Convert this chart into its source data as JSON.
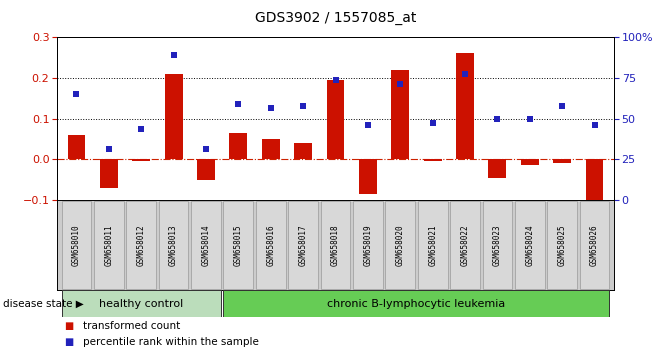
{
  "title": "GDS3902 / 1557085_at",
  "samples": [
    "GSM658010",
    "GSM658011",
    "GSM658012",
    "GSM658013",
    "GSM658014",
    "GSM658015",
    "GSM658016",
    "GSM658017",
    "GSM658018",
    "GSM658019",
    "GSM658020",
    "GSM658021",
    "GSM658022",
    "GSM658023",
    "GSM658024",
    "GSM658025",
    "GSM658026"
  ],
  "bar_values": [
    0.06,
    -0.07,
    -0.003,
    0.21,
    -0.05,
    0.065,
    0.05,
    0.04,
    0.195,
    -0.085,
    0.22,
    -0.003,
    0.26,
    -0.045,
    -0.013,
    -0.01,
    -0.1
  ],
  "blue_values": [
    0.16,
    0.025,
    0.075,
    0.255,
    0.025,
    0.135,
    0.125,
    0.13,
    0.195,
    0.085,
    0.185,
    0.09,
    0.21,
    0.1,
    0.1,
    0.13,
    0.085
  ],
  "bar_color": "#cc1100",
  "blue_color": "#2222bb",
  "zero_line_color": "#cc2200",
  "group1_label": "healthy control",
  "group2_label": "chronic B-lymphocytic leukemia",
  "group1_color": "#bbddbb",
  "group2_color": "#66cc55",
  "disease_state_label": "disease state",
  "legend1": "transformed count",
  "legend2": "percentile rank within the sample",
  "ylim_left": [
    -0.1,
    0.3
  ],
  "ylim_right": [
    0,
    100
  ],
  "yticks_left": [
    -0.1,
    0.0,
    0.1,
    0.2,
    0.3
  ],
  "yticks_right": [
    0,
    25,
    50,
    75,
    100
  ],
  "hlines": [
    0.1,
    0.2
  ],
  "group1_count": 5,
  "group2_count": 12,
  "xticklabel_bg": "#d8d8d8",
  "xticklabel_border": "#999999"
}
